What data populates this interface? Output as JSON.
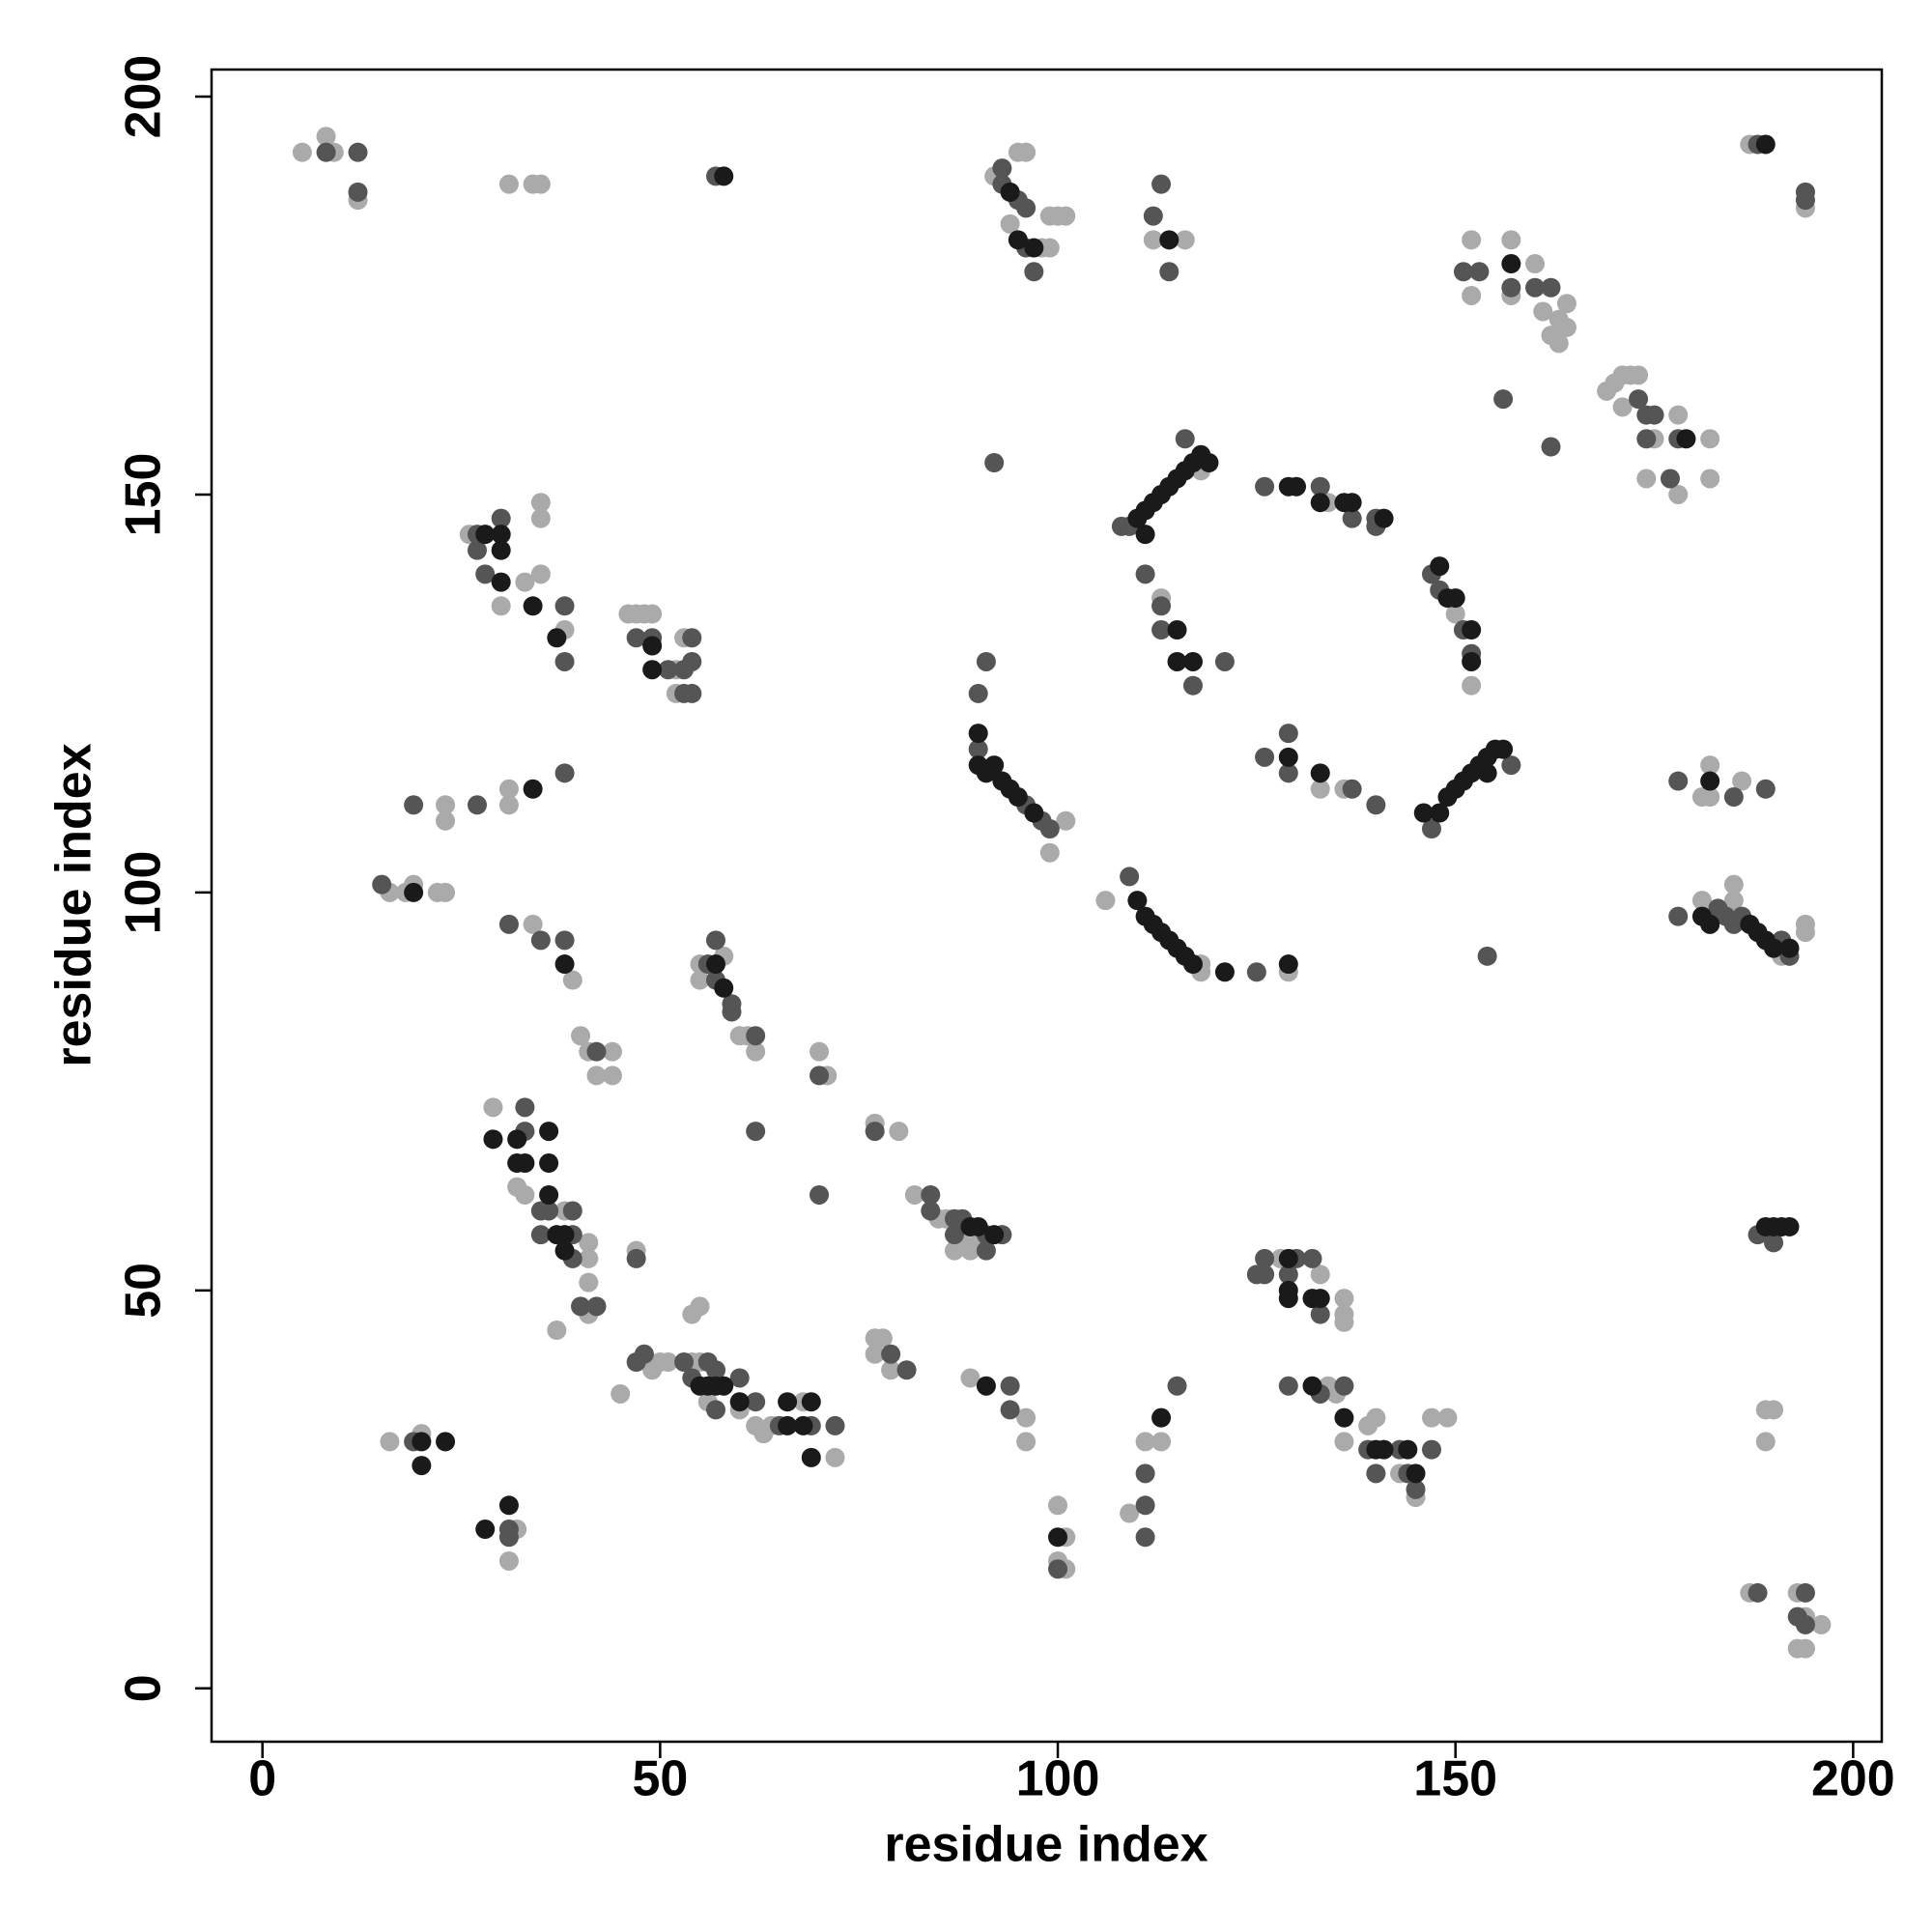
{
  "chart_data": {
    "type": "scatter",
    "xlabel": "residue index",
    "ylabel": "residue index",
    "xlim": [
      -6.4,
      203.6
    ],
    "ylim": [
      -6.7,
      203.4
    ],
    "xticks": [
      0,
      50,
      100,
      150,
      200
    ],
    "yticks": [
      0,
      50,
      100,
      150,
      200
    ],
    "series": [
      {
        "color": "#aaaaaa",
        "x": [
          5,
          8,
          9,
          12,
          31,
          34,
          35,
          92,
          95,
          96,
          94,
          98,
          99,
          100,
          101,
          99,
          112,
          116,
          152,
          152,
          157,
          157,
          160,
          161,
          162,
          163,
          164,
          164,
          163,
          169,
          170,
          171,
          172,
          173,
          171,
          175,
          178,
          182,
          174,
          178,
          182,
          187,
          194,
          118,
          134,
          150,
          152,
          113,
          133,
          136,
          101,
          99,
          106,
          118,
          118,
          129,
          26,
          30,
          33,
          35,
          35,
          35,
          38,
          46,
          47,
          48,
          49,
          52,
          53,
          52,
          23,
          23,
          31,
          31,
          16,
          18,
          19,
          22,
          23,
          34,
          39,
          55,
          55,
          58,
          60,
          61,
          62,
          40,
          41,
          42,
          44,
          44,
          70,
          71,
          77,
          80,
          29,
          32,
          33,
          38,
          41,
          41,
          41,
          41,
          37,
          47,
          45,
          49,
          50,
          51,
          54,
          55,
          56,
          60,
          62,
          63,
          64,
          68,
          72,
          54,
          55,
          77,
          77,
          78,
          79,
          82,
          85,
          86,
          88,
          90,
          89,
          87,
          89,
          96,
          96,
          100,
          100,
          101,
          101,
          109,
          111,
          113,
          128,
          133,
          136,
          136,
          136,
          134,
          135,
          136,
          139,
          140,
          143,
          145,
          147,
          149,
          16,
          20,
          32,
          31,
          182,
          181,
          182,
          186,
          181,
          185,
          185,
          191,
          194,
          194,
          189,
          190,
          189,
          187,
          193,
          194,
          196,
          193,
          194
        ],
        "values": [
          193,
          195,
          193,
          187,
          189,
          189,
          189,
          190,
          193,
          193,
          184,
          181,
          185,
          185,
          185,
          181,
          182,
          182,
          182,
          175,
          182,
          175,
          179,
          173,
          170,
          172,
          174,
          171,
          169,
          163,
          164,
          165,
          165,
          165,
          161,
          157,
          160,
          157,
          152,
          150,
          152,
          194,
          186,
          153,
          149,
          135,
          126,
          137,
          113,
          113,
          109,
          105,
          99,
          91,
          90,
          90,
          145,
          136,
          139,
          140,
          149,
          147,
          133,
          135,
          135,
          135,
          135,
          128,
          132,
          125,
          109,
          111,
          111,
          113,
          100,
          100,
          101,
          100,
          100,
          96,
          89,
          89,
          91,
          92,
          82,
          82,
          80,
          82,
          80,
          77,
          80,
          77,
          80,
          77,
          71,
          70,
          73,
          63,
          62,
          60,
          56,
          54,
          51,
          47,
          45,
          55,
          37,
          40,
          41,
          41,
          41,
          41,
          36,
          35,
          33,
          32,
          33,
          36,
          29,
          47,
          48,
          44,
          42,
          44,
          40,
          62,
          59,
          59,
          56,
          56,
          55,
          55,
          39,
          34,
          31,
          23,
          16,
          19,
          15,
          22,
          31,
          31,
          54,
          52,
          49,
          47,
          46,
          38,
          37,
          31,
          33,
          34,
          27,
          24,
          34,
          34,
          31,
          32,
          20,
          16,
          116,
          112,
          112,
          114,
          99,
          101,
          99,
          92,
          96,
          95,
          35,
          35,
          31,
          12,
          12,
          9,
          8,
          5,
          5
        ]
      },
      {
        "color": "#555555",
        "x": [
          8,
          12,
          12,
          57,
          93,
          93,
          95,
          96,
          96,
          97,
          113,
          112,
          114,
          151,
          153,
          157,
          160,
          162,
          156,
          162,
          173,
          174,
          175,
          174,
          178,
          177,
          188,
          194,
          194,
          92,
          108,
          109,
          116,
          126,
          133,
          137,
          140,
          140,
          147,
          148,
          151,
          152,
          111,
          113,
          113,
          117,
          121,
          147,
          157,
          129,
          126,
          129,
          137,
          140,
          90,
          96,
          98,
          99,
          90,
          91,
          109,
          125,
          27,
          30,
          27,
          28,
          38,
          38,
          47,
          49,
          51,
          53,
          54,
          54,
          53,
          54,
          19,
          27,
          38,
          15,
          31,
          35,
          38,
          56,
          57,
          57,
          59,
          59,
          62,
          42,
          70,
          62,
          70,
          77,
          33,
          33,
          35,
          36,
          39,
          39,
          35,
          39,
          40,
          42,
          47,
          47,
          48,
          53,
          56,
          57,
          54,
          57,
          60,
          62,
          65,
          69,
          72,
          79,
          81,
          84,
          84,
          87,
          87,
          88,
          91,
          93,
          91,
          94,
          94,
          100,
          111,
          111,
          111,
          115,
          125,
          126,
          129,
          130,
          126,
          132,
          133,
          129,
          133,
          136,
          139,
          140,
          143,
          144,
          145,
          147,
          19,
          31,
          31,
          178,
          185,
          189,
          178,
          183,
          184,
          185,
          186,
          191,
          192,
          154,
          188,
          190,
          188,
          194,
          193,
          194
        ],
        "values": [
          193,
          193,
          188,
          190,
          191,
          189,
          187,
          186,
          181,
          178,
          189,
          185,
          178,
          178,
          178,
          176,
          176,
          176,
          162,
          156,
          162,
          160,
          160,
          157,
          157,
          152,
          194,
          188,
          187,
          154,
          146,
          146,
          157,
          151,
          151,
          147,
          147,
          146,
          140,
          138,
          133,
          130,
          140,
          136,
          133,
          126,
          129,
          108,
          116,
          120,
          117,
          115,
          113,
          111,
          118,
          111,
          109,
          108,
          125,
          129,
          102,
          90,
          145,
          147,
          143,
          140,
          136,
          129,
          132,
          132,
          128,
          128,
          132,
          129,
          125,
          125,
          111,
          111,
          115,
          101,
          96,
          94,
          94,
          91,
          94,
          89,
          86,
          85,
          82,
          80,
          77,
          70,
          62,
          70,
          70,
          73,
          60,
          60,
          60,
          57,
          57,
          54,
          48,
          48,
          54,
          41,
          42,
          41,
          41,
          40,
          39,
          35,
          39,
          36,
          33,
          33,
          33,
          42,
          40,
          62,
          60,
          59,
          57,
          59,
          57,
          57,
          55,
          38,
          35,
          15,
          23,
          27,
          19,
          38,
          52,
          54,
          52,
          54,
          52,
          54,
          47,
          38,
          37,
          38,
          30,
          27,
          30,
          27,
          25,
          30,
          31,
          20,
          19,
          114,
          112,
          113,
          97,
          98,
          97,
          96,
          97,
          94,
          92,
          92,
          57,
          56,
          12,
          12,
          9,
          8
        ]
      },
      {
        "color": "#1a1a1a",
        "x": [
          94,
          95,
          97,
          114,
          157,
          179,
          189,
          110,
          111,
          112,
          113,
          114,
          115,
          116,
          117,
          118,
          119,
          111,
          129,
          130,
          133,
          136,
          137,
          141,
          148,
          149,
          150,
          152,
          152,
          115,
          115,
          117,
          146,
          148,
          149,
          150,
          151,
          152,
          153,
          154,
          155,
          156,
          154,
          129,
          133,
          90,
          90,
          91,
          92,
          93,
          94,
          95,
          97,
          110,
          111,
          112,
          113,
          114,
          115,
          116,
          117,
          121,
          129,
          28,
          30,
          30,
          30,
          34,
          37,
          49,
          49,
          34,
          19,
          38,
          57,
          58,
          29,
          32,
          32,
          33,
          36,
          36,
          36,
          37,
          38,
          38,
          55,
          56,
          57,
          58,
          60,
          66,
          66,
          69,
          68,
          69,
          89,
          90,
          92,
          91,
          100,
          113,
          129,
          129,
          129,
          132,
          133,
          132,
          136,
          140,
          141,
          144,
          145,
          20,
          20,
          23,
          28,
          31,
          182,
          181,
          182,
          187,
          188,
          189,
          190,
          192,
          189,
          190,
          191,
          192,
          58
        ],
        "values": [
          188,
          182,
          181,
          182,
          179,
          157,
          194,
          147,
          148,
          149,
          150,
          151,
          152,
          153,
          154,
          155,
          154,
          145,
          151,
          151,
          149,
          149,
          149,
          147,
          141,
          137,
          137,
          133,
          129,
          133,
          129,
          129,
          110,
          110,
          112,
          113,
          114,
          115,
          116,
          117,
          118,
          118,
          115,
          117,
          115,
          120,
          116,
          115,
          116,
          114,
          113,
          112,
          110,
          99,
          97,
          96,
          95,
          94,
          93,
          92,
          91,
          90,
          91,
          145,
          145,
          143,
          139,
          136,
          132,
          131,
          128,
          113,
          100,
          91,
          91,
          88,
          69,
          69,
          66,
          66,
          70,
          66,
          62,
          57,
          57,
          55,
          38,
          38,
          38,
          38,
          36,
          33,
          36,
          36,
          33,
          29,
          58,
          58,
          57,
          38,
          19,
          34,
          54,
          50,
          49,
          49,
          49,
          38,
          34,
          30,
          30,
          30,
          27,
          31,
          28,
          31,
          20,
          23,
          114,
          97,
          96,
          96,
          95,
          94,
          93,
          93,
          58,
          58,
          58,
          58,
          190
        ]
      }
    ]
  }
}
